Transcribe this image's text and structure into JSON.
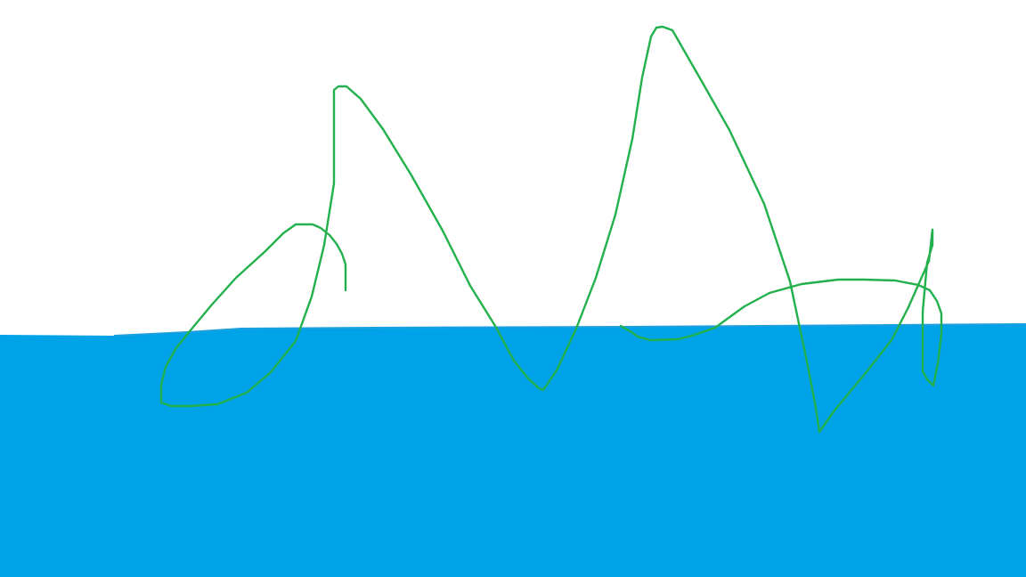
{
  "drawing": {
    "colors": {
      "background": "#ffffff",
      "water": "#00a2e8",
      "waterline": "#1e9fdf",
      "stroke": "#22b14c"
    }
  }
}
